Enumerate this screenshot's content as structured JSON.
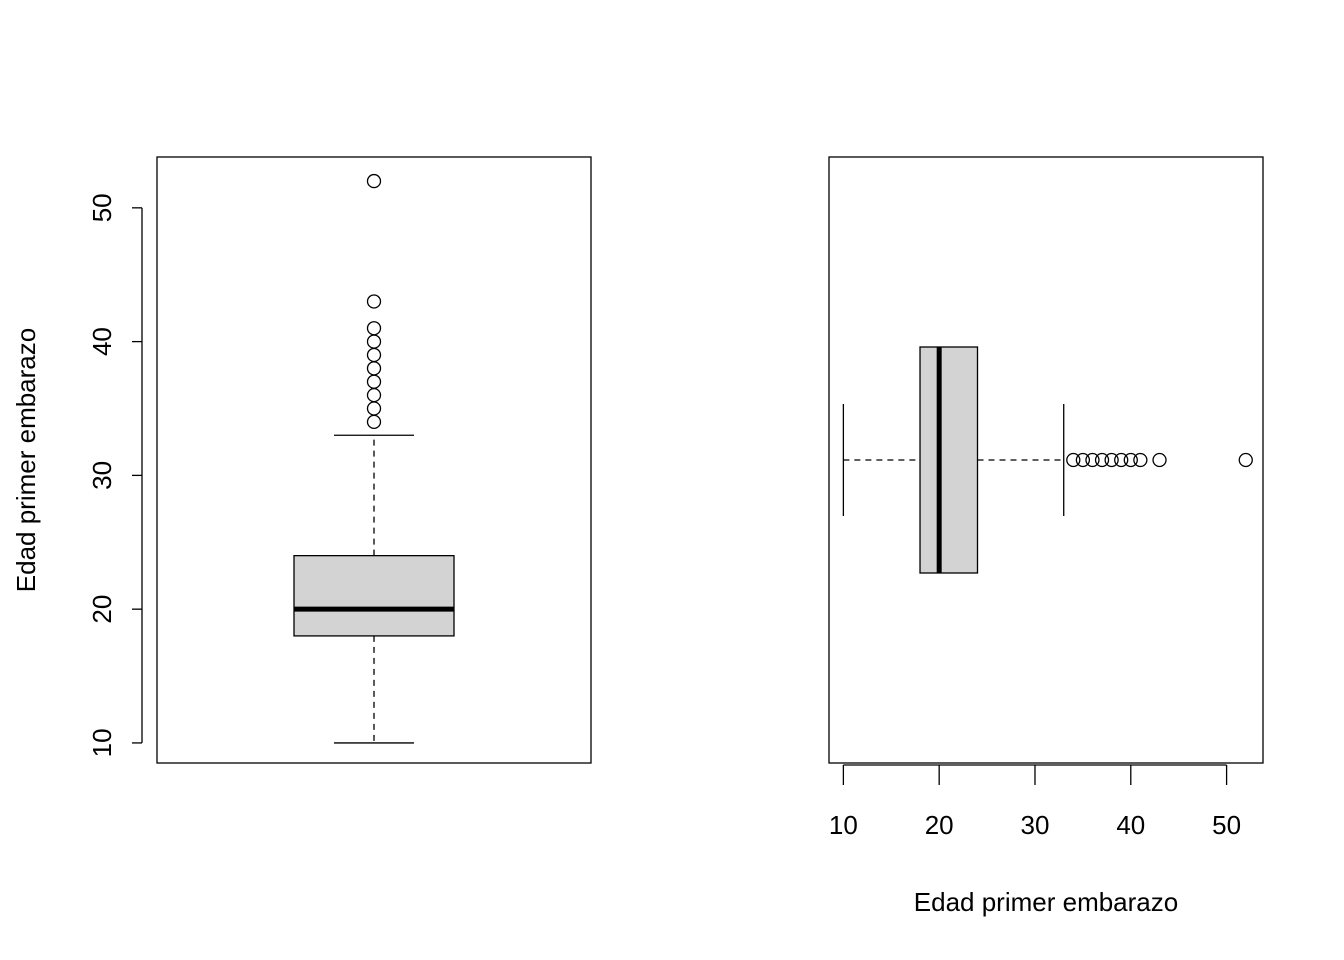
{
  "chart_data": [
    {
      "type": "boxplot",
      "orientation": "vertical",
      "ylabel": "Edad primer embarazo",
      "xlabel": "",
      "ylim": [
        8.5,
        53.8
      ],
      "yticks": [
        10,
        20,
        30,
        40,
        50
      ],
      "box": {
        "whisker_low": 10,
        "q1": 18,
        "median": 20,
        "q3": 24,
        "whisker_high": 33
      },
      "outliers": [
        34,
        35,
        36,
        37,
        38,
        39,
        40,
        41,
        43,
        52
      ],
      "colors": {
        "box_fill": "#d3d3d3",
        "stroke": "#000000"
      }
    },
    {
      "type": "boxplot",
      "orientation": "horizontal",
      "xlabel": "Edad primer embarazo",
      "ylabel": "",
      "xlim": [
        8.5,
        53.8
      ],
      "xticks": [
        10,
        20,
        30,
        40,
        50
      ],
      "box": {
        "whisker_low": 10,
        "q1": 18,
        "median": 20,
        "q3": 24,
        "whisker_high": 33
      },
      "outliers": [
        34,
        35,
        36,
        37,
        38,
        39,
        40,
        41,
        43,
        52
      ],
      "colors": {
        "box_fill": "#d3d3d3",
        "stroke": "#000000"
      }
    }
  ]
}
